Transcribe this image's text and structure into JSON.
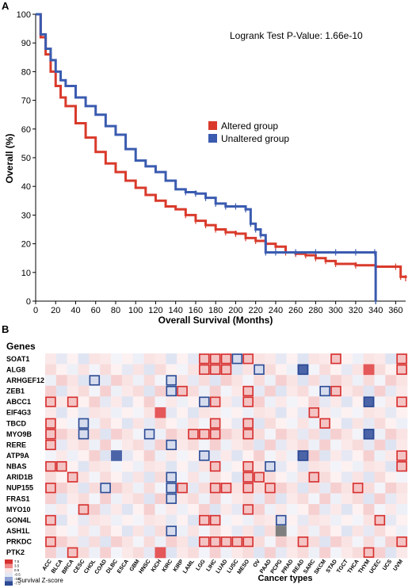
{
  "chart_data": [
    {
      "type": "line",
      "panel_label": "A",
      "xlabel": "Overall Survival (Months)",
      "ylabel": "Overall (%)",
      "xlim": [
        0,
        370
      ],
      "ylim": [
        0,
        100
      ],
      "xticks": [
        "0",
        "20",
        "40",
        "60",
        "80",
        "100",
        "120",
        "140",
        "160",
        "180",
        "200",
        "220",
        "240",
        "260",
        "280",
        "300",
        "320",
        "340",
        "360"
      ],
      "yticks": [
        "0",
        "10",
        "20",
        "30",
        "40",
        "50",
        "60",
        "70",
        "80",
        "90",
        "100"
      ],
      "annotation": "Logrank Test P-Value: 1.66e-10",
      "legend_position": "center-right",
      "series": [
        {
          "name": "Altered group",
          "color": "#d93a2b",
          "x": [
            0,
            5,
            10,
            15,
            20,
            25,
            30,
            40,
            50,
            60,
            70,
            80,
            90,
            100,
            110,
            120,
            130,
            140,
            150,
            160,
            170,
            180,
            190,
            200,
            210,
            220,
            230,
            240,
            250,
            260,
            270,
            280,
            290,
            300,
            320,
            340,
            360,
            365,
            370
          ],
          "y": [
            100,
            92,
            86,
            80,
            75,
            71,
            68,
            62,
            57,
            52,
            48,
            45,
            42,
            39.5,
            37,
            35,
            33,
            32,
            30,
            28,
            26.5,
            25,
            24,
            23.5,
            22,
            21,
            20,
            19,
            17,
            16.5,
            16,
            15,
            14,
            13,
            12.5,
            12,
            12,
            8.5,
            8
          ]
        },
        {
          "name": "Unaltered group",
          "color": "#3a5bb0",
          "x": [
            0,
            5,
            10,
            15,
            20,
            25,
            30,
            40,
            50,
            60,
            70,
            80,
            90,
            100,
            110,
            120,
            130,
            140,
            150,
            160,
            170,
            180,
            190,
            200,
            210,
            215,
            220,
            225,
            230,
            240,
            260,
            280,
            300,
            320,
            339,
            340
          ],
          "y": [
            100,
            93,
            88,
            84,
            80,
            77,
            75,
            71,
            68,
            65,
            61,
            58,
            53,
            49,
            47,
            45,
            42,
            39,
            38,
            37.5,
            36,
            34,
            33,
            33,
            32,
            27,
            25,
            23,
            17,
            17,
            17,
            17,
            17,
            17,
            17,
            0
          ]
        }
      ]
    },
    {
      "type": "heatmap",
      "panel_label": "B",
      "row_header": "Genes",
      "xlabel": "Cancer types",
      "colorbar_label": "Survival Z-score",
      "colorbar_ticks": [
        "7.5",
        "3.5",
        "0.5",
        "-0.5",
        "-3.5",
        "-7.5"
      ],
      "rows": [
        "SOAT1",
        "ALG8",
        "ARHGEF12",
        "ZEB1",
        "ABCC1",
        "EIF4G3",
        "TBCD",
        "MYO9B",
        "RERE",
        "ATP9A",
        "NBAS",
        "ARID1B",
        "NUP155",
        "FRAS1",
        "MYO10",
        "GON4L",
        "ASH1L",
        "PRKDC",
        "PTK2"
      ],
      "columns": [
        "ACC",
        "BLCA",
        "BRCA",
        "CESC",
        "CHOL",
        "COAD",
        "DLBC",
        "ESCA",
        "GBM",
        "HNSC",
        "KICH",
        "KIRC",
        "KIRP",
        "LAML",
        "LGG",
        "LIHC",
        "LUAD",
        "LUSC",
        "MESO",
        "OV",
        "PAAD",
        "PCPG",
        "PRAD",
        "READ",
        "SARC",
        "SKCM",
        "STAD",
        "TGCT",
        "THCA",
        "THYM",
        "UCEC",
        "UCS",
        "UVM"
      ],
      "boxed_positive": [
        [
          "SOAT1",
          "LGG"
        ],
        [
          "SOAT1",
          "LIHC"
        ],
        [
          "SOAT1",
          "LUAD"
        ],
        [
          "SOAT1",
          "MESO"
        ],
        [
          "SOAT1",
          "STAD"
        ],
        [
          "SOAT1",
          "UVM"
        ],
        [
          "ALG8",
          "LGG"
        ],
        [
          "ALG8",
          "LIHC"
        ],
        [
          "ALG8",
          "LUAD"
        ],
        [
          "ALG8",
          "UVM"
        ],
        [
          "ZEB1",
          "KIRP"
        ],
        [
          "ZEB1",
          "MESO"
        ],
        [
          "ZEB1",
          "STAD"
        ],
        [
          "ABCC1",
          "ACC"
        ],
        [
          "ABCC1",
          "BRCA"
        ],
        [
          "ABCC1",
          "LIHC"
        ],
        [
          "ABCC1",
          "MESO"
        ],
        [
          "ABCC1",
          "UVM"
        ],
        [
          "EIF4G3",
          "SARC"
        ],
        [
          "TBCD",
          "ACC"
        ],
        [
          "TBCD",
          "LIHC"
        ],
        [
          "TBCD",
          "MESO"
        ],
        [
          "TBCD",
          "SKCM"
        ],
        [
          "MYO9B",
          "ACC"
        ],
        [
          "MYO9B",
          "LAML"
        ],
        [
          "MYO9B",
          "LGG"
        ],
        [
          "MYO9B",
          "LIHC"
        ],
        [
          "MYO9B",
          "MESO"
        ],
        [
          "RERE",
          "ACC"
        ],
        [
          "ATP9A",
          "UVM"
        ],
        [
          "NBAS",
          "ACC"
        ],
        [
          "NBAS",
          "BLCA"
        ],
        [
          "NBAS",
          "LIHC"
        ],
        [
          "NBAS",
          "MESO"
        ],
        [
          "NBAS",
          "UVM"
        ],
        [
          "ARID1B",
          "BRCA"
        ],
        [
          "ARID1B",
          "MESO"
        ],
        [
          "ARID1B",
          "OV"
        ],
        [
          "ARID1B",
          "SARC"
        ],
        [
          "NUP155",
          "ACC"
        ],
        [
          "NUP155",
          "KIRP"
        ],
        [
          "NUP155",
          "LIHC"
        ],
        [
          "NUP155",
          "LUAD"
        ],
        [
          "NUP155",
          "MESO"
        ],
        [
          "NUP155",
          "PAAD"
        ],
        [
          "NUP155",
          "THCA"
        ],
        [
          "MYO10",
          "CESC"
        ],
        [
          "MYO10",
          "MESO"
        ],
        [
          "GON4L",
          "ACC"
        ],
        [
          "GON4L",
          "LGG"
        ],
        [
          "GON4L",
          "LIHC"
        ],
        [
          "GON4L",
          "UCEC"
        ],
        [
          "PRKDC",
          "ACC"
        ],
        [
          "PRKDC",
          "LGG"
        ],
        [
          "PRKDC",
          "LIHC"
        ],
        [
          "PRKDC",
          "LUAD"
        ],
        [
          "PRKDC",
          "LUSC"
        ],
        [
          "PRKDC",
          "MESO"
        ],
        [
          "PRKDC",
          "READ"
        ],
        [
          "PRKDC",
          "UVM"
        ],
        [
          "PTK2",
          "BRCA"
        ],
        [
          "PTK2",
          "THYM"
        ]
      ],
      "boxed_negative": [
        [
          "SOAT1",
          "LUSC"
        ],
        [
          "ALG8",
          "OV"
        ],
        [
          "ALG8",
          "READ"
        ],
        [
          "ARHGEF12",
          "CHOL"
        ],
        [
          "ARHGEF12",
          "KIRC"
        ],
        [
          "ZEB1",
          "KIRC"
        ],
        [
          "ZEB1",
          "SKCM"
        ],
        [
          "ABCC1",
          "LGG"
        ],
        [
          "ABCC1",
          "THYM"
        ],
        [
          "TBCD",
          "CESC"
        ],
        [
          "MYO9B",
          "CESC"
        ],
        [
          "MYO9B",
          "HNSC"
        ],
        [
          "MYO9B",
          "THYM"
        ],
        [
          "RERE",
          "KIRC"
        ],
        [
          "ATP9A",
          "LGG"
        ],
        [
          "ATP9A",
          "READ"
        ],
        [
          "NBAS",
          "PAAD"
        ],
        [
          "ARID1B",
          "KIRC"
        ],
        [
          "NUP155",
          "COAD"
        ],
        [
          "NUP155",
          "KIRC"
        ],
        [
          "FRAS1",
          "KIRC"
        ],
        [
          "GON4L",
          "PCPG"
        ],
        [
          "ASH1L",
          "KIRC"
        ]
      ],
      "strong_positive": [
        [
          "EIF4G3",
          "KICH"
        ],
        [
          "PTK2",
          "KICH"
        ],
        [
          "ALG8",
          "THYM"
        ]
      ],
      "strong_negative": [
        [
          "MYO9B",
          "THYM"
        ],
        [
          "ATP9A",
          "READ"
        ],
        [
          "ABCC1",
          "THYM"
        ],
        [
          "ALG8",
          "READ"
        ],
        [
          "ATP9A",
          "DLBC"
        ]
      ],
      "missing": [
        [
          "ASH1L",
          "PCPG"
        ]
      ]
    }
  ]
}
